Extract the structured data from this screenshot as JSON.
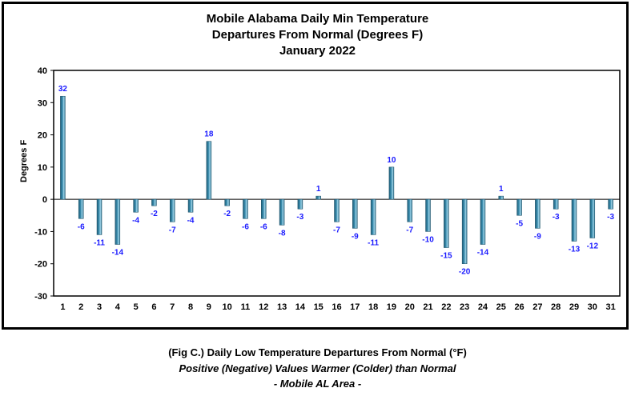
{
  "chart_data": {
    "type": "bar",
    "title_lines": [
      "Mobile Alabama Daily Min Temperature",
      "Departures From Normal (Degrees F)",
      "January 2022"
    ],
    "ylabel": "Degrees F",
    "xlabel": "",
    "ylim": [
      -30,
      40
    ],
    "yticks": [
      40,
      30,
      20,
      10,
      0,
      -10,
      -20,
      -30
    ],
    "grid": false,
    "legend": "none",
    "categories": [
      "1",
      "2",
      "3",
      "4",
      "5",
      "6",
      "7",
      "8",
      "9",
      "10",
      "11",
      "12",
      "13",
      "14",
      "15",
      "16",
      "17",
      "18",
      "19",
      "20",
      "21",
      "22",
      "23",
      "24",
      "25",
      "26",
      "27",
      "28",
      "29",
      "30",
      "31"
    ],
    "values": [
      32,
      -6,
      -11,
      -14,
      -4,
      -2,
      -7,
      -4,
      18,
      -2,
      -6,
      -6,
      -8,
      -3,
      1,
      -7,
      -9,
      -11,
      10,
      -7,
      -10,
      -15,
      -20,
      -14,
      1,
      -5,
      -9,
      -3,
      -13,
      -12,
      -3
    ],
    "bar_color": "#3d8fb0",
    "label_color": "#1a1aff"
  },
  "caption": {
    "line1": "(Fig C.) Daily Low Temperature Departures From Normal (°F)",
    "line2": "Positive (Negative) Values Warmer (Colder) than Normal",
    "line3": "- Mobile AL Area -"
  }
}
